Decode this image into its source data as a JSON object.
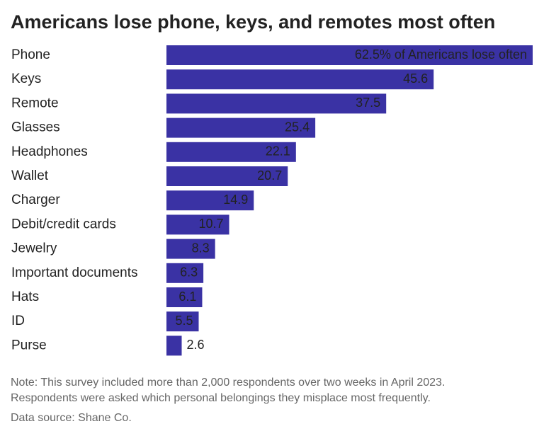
{
  "chart_data": {
    "type": "bar",
    "title": "Americans lose phone, keys, and remotes most often",
    "categories": [
      "Phone",
      "Keys",
      "Remote",
      "Glasses",
      "Headphones",
      "Wallet",
      "Charger",
      "Debit/credit cards",
      "Jewelry",
      "Important documents",
      "Hats",
      "ID",
      "Purse"
    ],
    "values": [
      62.5,
      45.6,
      37.5,
      25.4,
      22.1,
      20.7,
      14.9,
      10.7,
      8.3,
      6.3,
      6.1,
      5.5,
      2.6
    ],
    "value_labels": [
      "62.5% of Americans lose often",
      "45.6",
      "37.5",
      "25.4",
      "22.1",
      "20.7",
      "14.9",
      "10.7",
      "8.3",
      "6.3",
      "6.1",
      "5.5",
      "2.6"
    ],
    "color": "#3a32a4",
    "notes": [
      "Note: This survey included more than 2,000 respondents over two weeks in April 2023.",
      "Respondents were asked which personal belongings they misplace most frequently.",
      "Data source: Shane Co."
    ]
  }
}
